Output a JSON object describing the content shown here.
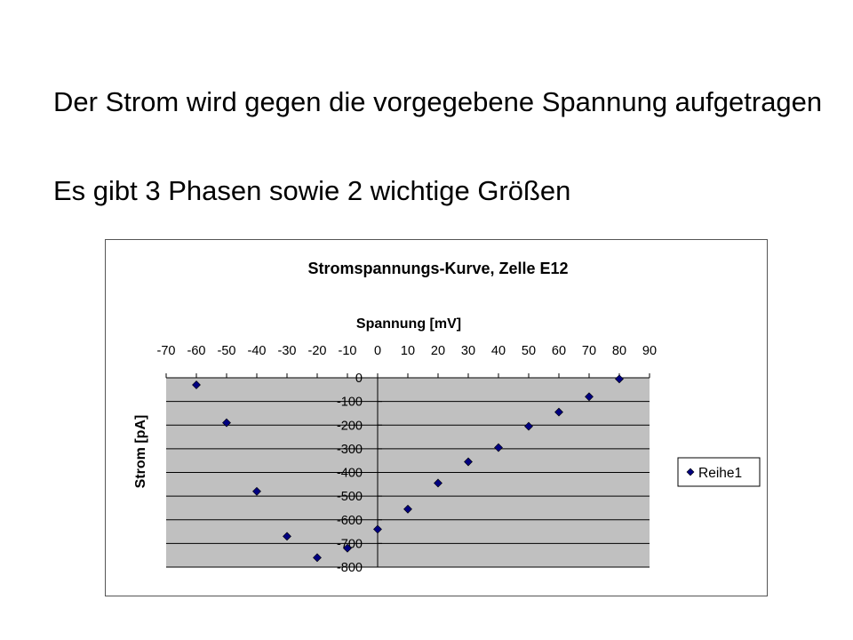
{
  "slide": {
    "line1": "Der Strom wird gegen die vorgegebene Spannung aufgetragen",
    "line2": "Es gibt 3 Phasen sowie 2 wichtige Größen"
  },
  "colors": {
    "plot_area": "#c0c0c0",
    "gridline": "#000000",
    "marker": "#000080"
  },
  "chart_data": {
    "type": "scatter",
    "title": "Stromspannungs-Kurve, Zelle E12",
    "xlabel": "Spannung [mV]",
    "ylabel": "Strom [pA]",
    "xlim": [
      -70,
      90
    ],
    "ylim": [
      -800,
      0
    ],
    "x_ticks": [
      -70,
      -60,
      -50,
      -40,
      -30,
      -20,
      -10,
      0,
      10,
      20,
      30,
      40,
      50,
      60,
      70,
      80,
      90
    ],
    "y_ticks": [
      0,
      -100,
      -200,
      -300,
      -400,
      -500,
      -600,
      -700,
      -800
    ],
    "x_axis_position": "top",
    "grid": "horizontal",
    "legend_position": "right",
    "series": [
      {
        "name": "Reihe1",
        "marker": "diamond",
        "x": [
          -60,
          -50,
          -40,
          -30,
          -20,
          -10,
          0,
          10,
          20,
          30,
          40,
          50,
          60,
          70,
          80
        ],
        "y": [
          -30,
          -190,
          -480,
          -670,
          -760,
          -720,
          -640,
          -555,
          -445,
          -355,
          -295,
          -205,
          -145,
          -80,
          -5
        ]
      }
    ]
  }
}
